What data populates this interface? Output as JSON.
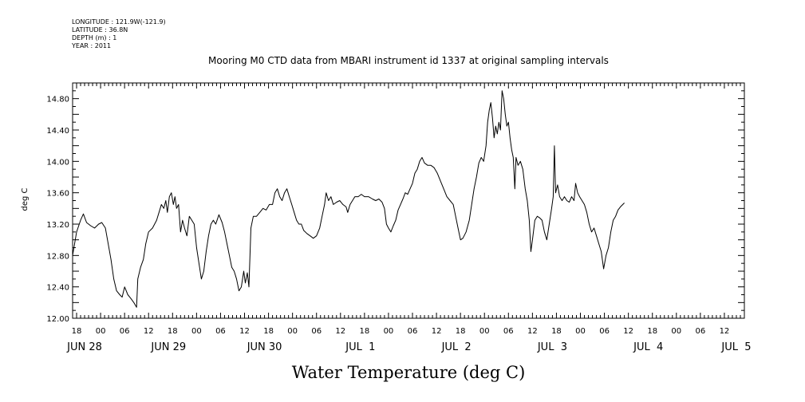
{
  "meta": [
    "LONGITUDE : 121.9W(-121.9)",
    "LATITUDE : 36.8N",
    "DEPTH (m) : 1",
    "YEAR : 2011"
  ],
  "chart_data": {
    "type": "line",
    "title": "Mooring M0 CTD data from MBARI instrument id 1337 at original sampling intervals",
    "xlabel": "Water Temperature (deg C)",
    "ylabel": "deg C",
    "ylim": [
      12.0,
      15.0
    ],
    "yticks": [
      "12.00",
      "12.40",
      "12.80",
      "13.20",
      "13.60",
      "14.00",
      "14.40",
      "14.80"
    ],
    "xlim_hours": [
      0,
      168
    ],
    "hour_ticks": [
      {
        "t": 1,
        "label": "18"
      },
      {
        "t": 7,
        "label": "00"
      },
      {
        "t": 13,
        "label": "06"
      },
      {
        "t": 19,
        "label": "12"
      },
      {
        "t": 25,
        "label": "18"
      },
      {
        "t": 31,
        "label": "00"
      },
      {
        "t": 37,
        "label": "06"
      },
      {
        "t": 43,
        "label": "12"
      },
      {
        "t": 49,
        "label": "18"
      },
      {
        "t": 55,
        "label": "00"
      },
      {
        "t": 61,
        "label": "06"
      },
      {
        "t": 67,
        "label": "12"
      },
      {
        "t": 73,
        "label": "18"
      },
      {
        "t": 79,
        "label": "00"
      },
      {
        "t": 85,
        "label": "06"
      },
      {
        "t": 91,
        "label": "12"
      },
      {
        "t": 97,
        "label": "18"
      },
      {
        "t": 103,
        "label": "00"
      },
      {
        "t": 109,
        "label": "06"
      },
      {
        "t": 115,
        "label": "12"
      },
      {
        "t": 121,
        "label": "18"
      },
      {
        "t": 127,
        "label": "00"
      },
      {
        "t": 133,
        "label": "06"
      },
      {
        "t": 139,
        "label": "12"
      },
      {
        "t": 145,
        "label": "18"
      },
      {
        "t": 151,
        "label": "00"
      },
      {
        "t": 157,
        "label": "06"
      },
      {
        "t": 163,
        "label": "12"
      }
    ],
    "day_ticks": [
      {
        "t": 3,
        "label": "JUN 28"
      },
      {
        "t": 24,
        "label": "JUN 29"
      },
      {
        "t": 48,
        "label": "JUN 30"
      },
      {
        "t": 72,
        "label": "JUL  1"
      },
      {
        "t": 96,
        "label": "JUL  2"
      },
      {
        "t": 120,
        "label": "JUL  3"
      },
      {
        "t": 144,
        "label": "JUL  4"
      },
      {
        "t": 166,
        "label": "JUL  5"
      }
    ],
    "series": [
      {
        "color": "#000000",
        "points": [
          [
            0.0,
            12.8
          ],
          [
            0.5,
            12.95
          ],
          [
            1.0,
            13.1
          ],
          [
            2.0,
            13.25
          ],
          [
            2.7,
            13.33
          ],
          [
            3.5,
            13.22
          ],
          [
            4.5,
            13.18
          ],
          [
            5.5,
            13.15
          ],
          [
            6.5,
            13.2
          ],
          [
            7.3,
            13.22
          ],
          [
            8.2,
            13.15
          ],
          [
            8.9,
            12.95
          ],
          [
            9.6,
            12.75
          ],
          [
            10.3,
            12.5
          ],
          [
            11.0,
            12.35
          ],
          [
            11.8,
            12.3
          ],
          [
            12.4,
            12.27
          ],
          [
            13.0,
            12.4
          ],
          [
            13.8,
            12.3
          ],
          [
            14.6,
            12.25
          ],
          [
            15.3,
            12.2
          ],
          [
            16.0,
            12.14
          ],
          [
            16.3,
            12.5
          ],
          [
            17.0,
            12.65
          ],
          [
            17.7,
            12.75
          ],
          [
            18.3,
            12.95
          ],
          [
            19.0,
            13.1
          ],
          [
            20.0,
            13.15
          ],
          [
            21.0,
            13.25
          ],
          [
            21.6,
            13.35
          ],
          [
            22.2,
            13.45
          ],
          [
            22.8,
            13.4
          ],
          [
            23.3,
            13.5
          ],
          [
            23.7,
            13.35
          ],
          [
            24.2,
            13.55
          ],
          [
            24.7,
            13.6
          ],
          [
            25.2,
            13.45
          ],
          [
            25.6,
            13.55
          ],
          [
            26.0,
            13.4
          ],
          [
            26.5,
            13.45
          ],
          [
            27.0,
            13.1
          ],
          [
            27.5,
            13.25
          ],
          [
            28.0,
            13.15
          ],
          [
            28.6,
            13.05
          ],
          [
            29.2,
            13.3
          ],
          [
            29.8,
            13.25
          ],
          [
            30.4,
            13.2
          ],
          [
            31.0,
            12.9
          ],
          [
            31.6,
            12.7
          ],
          [
            32.2,
            12.5
          ],
          [
            32.8,
            12.6
          ],
          [
            33.4,
            12.85
          ],
          [
            34.0,
            13.05
          ],
          [
            34.6,
            13.2
          ],
          [
            35.2,
            13.25
          ],
          [
            35.8,
            13.2
          ],
          [
            36.6,
            13.32
          ],
          [
            37.4,
            13.22
          ],
          [
            38.0,
            13.1
          ],
          [
            38.6,
            12.95
          ],
          [
            39.2,
            12.8
          ],
          [
            39.8,
            12.65
          ],
          [
            40.4,
            12.6
          ],
          [
            41.0,
            12.5
          ],
          [
            41.6,
            12.35
          ],
          [
            42.2,
            12.4
          ],
          [
            42.8,
            12.6
          ],
          [
            43.2,
            12.45
          ],
          [
            43.7,
            12.58
          ],
          [
            44.1,
            12.4
          ],
          [
            44.6,
            13.15
          ],
          [
            45.2,
            13.3
          ],
          [
            46.0,
            13.3
          ],
          [
            46.8,
            13.35
          ],
          [
            47.6,
            13.4
          ],
          [
            48.4,
            13.38
          ],
          [
            49.2,
            13.45
          ],
          [
            50.0,
            13.45
          ],
          [
            50.6,
            13.6
          ],
          [
            51.2,
            13.65
          ],
          [
            51.8,
            13.55
          ],
          [
            52.4,
            13.5
          ],
          [
            53.0,
            13.6
          ],
          [
            53.6,
            13.65
          ],
          [
            54.2,
            13.55
          ],
          [
            54.8,
            13.45
          ],
          [
            55.4,
            13.35
          ],
          [
            56.0,
            13.25
          ],
          [
            56.6,
            13.2
          ],
          [
            57.2,
            13.2
          ],
          [
            57.8,
            13.12
          ],
          [
            58.6,
            13.08
          ],
          [
            59.4,
            13.05
          ],
          [
            60.2,
            13.02
          ],
          [
            61.0,
            13.05
          ],
          [
            61.8,
            13.15
          ],
          [
            62.4,
            13.3
          ],
          [
            63.0,
            13.45
          ],
          [
            63.4,
            13.6
          ],
          [
            64.0,
            13.5
          ],
          [
            64.6,
            13.55
          ],
          [
            65.2,
            13.45
          ],
          [
            66.0,
            13.48
          ],
          [
            66.8,
            13.5
          ],
          [
            67.6,
            13.45
          ],
          [
            68.4,
            13.42
          ],
          [
            68.8,
            13.35
          ],
          [
            69.4,
            13.45
          ],
          [
            70.0,
            13.5
          ],
          [
            70.6,
            13.55
          ],
          [
            71.4,
            13.55
          ],
          [
            72.2,
            13.58
          ],
          [
            73.0,
            13.55
          ],
          [
            74.0,
            13.55
          ],
          [
            75.0,
            13.52
          ],
          [
            75.8,
            13.5
          ],
          [
            76.6,
            13.52
          ],
          [
            77.4,
            13.48
          ],
          [
            78.0,
            13.4
          ],
          [
            78.5,
            13.2
          ],
          [
            79.0,
            13.15
          ],
          [
            79.6,
            13.1
          ],
          [
            80.2,
            13.18
          ],
          [
            80.8,
            13.25
          ],
          [
            81.4,
            13.38
          ],
          [
            82.0,
            13.45
          ],
          [
            82.6,
            13.52
          ],
          [
            83.2,
            13.6
          ],
          [
            83.8,
            13.58
          ],
          [
            84.4,
            13.65
          ],
          [
            85.0,
            13.72
          ],
          [
            85.6,
            13.85
          ],
          [
            86.2,
            13.9
          ],
          [
            86.8,
            14.0
          ],
          [
            87.4,
            14.05
          ],
          [
            88.0,
            13.98
          ],
          [
            88.8,
            13.95
          ],
          [
            89.6,
            13.95
          ],
          [
            90.4,
            13.92
          ],
          [
            91.2,
            13.85
          ],
          [
            92.0,
            13.75
          ],
          [
            92.8,
            13.65
          ],
          [
            93.6,
            13.55
          ],
          [
            94.4,
            13.5
          ],
          [
            95.2,
            13.45
          ],
          [
            95.8,
            13.3
          ],
          [
            96.4,
            13.15
          ],
          [
            97.0,
            13.0
          ],
          [
            97.6,
            13.02
          ],
          [
            98.4,
            13.1
          ],
          [
            99.2,
            13.25
          ],
          [
            99.8,
            13.45
          ],
          [
            100.4,
            13.65
          ],
          [
            101.0,
            13.8
          ],
          [
            101.6,
            13.98
          ],
          [
            102.2,
            14.05
          ],
          [
            102.8,
            14.0
          ],
          [
            103.4,
            14.2
          ],
          [
            103.8,
            14.5
          ],
          [
            104.2,
            14.65
          ],
          [
            104.6,
            14.75
          ],
          [
            105.0,
            14.55
          ],
          [
            105.4,
            14.3
          ],
          [
            105.8,
            14.45
          ],
          [
            106.2,
            14.35
          ],
          [
            106.6,
            14.5
          ],
          [
            107.0,
            14.4
          ],
          [
            107.4,
            14.9
          ],
          [
            107.8,
            14.8
          ],
          [
            108.2,
            14.6
          ],
          [
            108.6,
            14.45
          ],
          [
            109.0,
            14.5
          ],
          [
            109.4,
            14.3
          ],
          [
            109.8,
            14.15
          ],
          [
            110.2,
            14.05
          ],
          [
            110.6,
            13.65
          ],
          [
            110.9,
            14.05
          ],
          [
            111.4,
            13.95
          ],
          [
            112.0,
            14.0
          ],
          [
            112.6,
            13.9
          ],
          [
            113.2,
            13.65
          ],
          [
            113.7,
            13.5
          ],
          [
            114.2,
            13.25
          ],
          [
            114.6,
            12.85
          ],
          [
            115.0,
            13.0
          ],
          [
            115.6,
            13.25
          ],
          [
            116.2,
            13.3
          ],
          [
            116.8,
            13.28
          ],
          [
            117.4,
            13.25
          ],
          [
            118.0,
            13.1
          ],
          [
            118.6,
            13.0
          ],
          [
            119.2,
            13.2
          ],
          [
            119.8,
            13.4
          ],
          [
            120.2,
            13.55
          ],
          [
            120.5,
            14.2
          ],
          [
            120.8,
            13.6
          ],
          [
            121.3,
            13.7
          ],
          [
            121.8,
            13.55
          ],
          [
            122.4,
            13.5
          ],
          [
            123.0,
            13.55
          ],
          [
            123.6,
            13.5
          ],
          [
            124.2,
            13.48
          ],
          [
            124.8,
            13.55
          ],
          [
            125.4,
            13.5
          ],
          [
            125.8,
            13.72
          ],
          [
            126.3,
            13.6
          ],
          [
            126.8,
            13.55
          ],
          [
            127.4,
            13.5
          ],
          [
            128.0,
            13.45
          ],
          [
            128.6,
            13.35
          ],
          [
            129.2,
            13.2
          ],
          [
            129.8,
            13.1
          ],
          [
            130.4,
            13.15
          ],
          [
            131.0,
            13.05
          ],
          [
            131.6,
            12.95
          ],
          [
            132.2,
            12.85
          ],
          [
            132.8,
            12.63
          ],
          [
            133.4,
            12.8
          ],
          [
            134.0,
            12.9
          ],
          [
            134.6,
            13.1
          ],
          [
            135.2,
            13.25
          ],
          [
            135.8,
            13.3
          ],
          [
            136.4,
            13.38
          ],
          [
            137.0,
            13.42
          ],
          [
            137.6,
            13.45
          ],
          [
            138.0,
            13.47
          ]
        ]
      }
    ]
  }
}
